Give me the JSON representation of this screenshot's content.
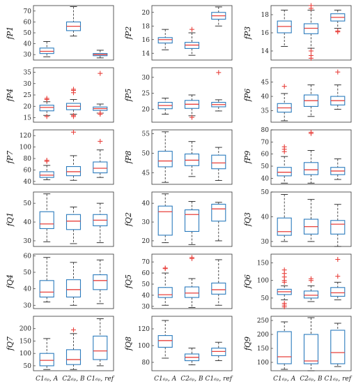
{
  "style": {
    "box_color": "#2b7bbd",
    "median_color": "#e8413c",
    "outlier_color": "#e8413c",
    "whisker_color": "#222222"
  },
  "grid": {
    "rows": 6,
    "cols": 3
  },
  "chart_data": [
    {
      "type": "box",
      "ylabel": "fP1",
      "ylim": [
        25,
        75
      ],
      "ticks": [
        30,
        40,
        50,
        60,
        70
      ],
      "categories": [],
      "boxes": [
        {
          "whislo": 28,
          "q1": 31,
          "med": 33,
          "q3": 36,
          "whishi": 42,
          "fliers": []
        },
        {
          "whislo": 47,
          "q1": 52,
          "med": 56,
          "q3": 60,
          "whishi": 74,
          "fliers": []
        },
        {
          "whislo": 27,
          "q1": 29,
          "med": 30,
          "q3": 31,
          "whishi": 34,
          "fliers": []
        }
      ]
    },
    {
      "type": "box",
      "ylabel": "fP2",
      "ylim": [
        13,
        21
      ],
      "ticks": [
        14,
        16,
        18,
        20
      ],
      "categories": [],
      "boxes": [
        {
          "whislo": 14.5,
          "q1": 15.5,
          "med": 16,
          "q3": 16.3,
          "whishi": 17.5,
          "fliers": []
        },
        {
          "whislo": 13.7,
          "q1": 14.7,
          "med": 15.2,
          "q3": 15.6,
          "whishi": 17,
          "fliers": [
            17.5
          ]
        },
        {
          "whislo": 18,
          "q1": 19,
          "med": 19.5,
          "q3": 20,
          "whishi": 20.8,
          "fliers": []
        }
      ]
    },
    {
      "type": "box",
      "ylabel": "fP3",
      "ylim": [
        13,
        19
      ],
      "ticks": [
        14,
        16,
        18
      ],
      "categories": [],
      "boxes": [
        {
          "whislo": 14.5,
          "q1": 16,
          "med": 16.7,
          "q3": 17.3,
          "whishi": 18.5,
          "fliers": []
        },
        {
          "whislo": 14.3,
          "q1": 15.9,
          "med": 16.5,
          "q3": 17,
          "whishi": 18.5,
          "fliers": [
            19,
            18.7,
            14,
            13.5,
            13.2
          ]
        },
        {
          "whislo": 16.5,
          "q1": 17.3,
          "med": 17.7,
          "q3": 18.1,
          "whishi": 18.5,
          "fliers": [
            16.2,
            16.1
          ]
        }
      ]
    },
    {
      "type": "box",
      "ylabel": "fP4",
      "ylim": [
        13,
        37
      ],
      "ticks": [
        15,
        20,
        25,
        30,
        35
      ],
      "categories": [],
      "boxes": [
        {
          "whislo": 16,
          "q1": 18,
          "med": 19.5,
          "q3": 20.5,
          "whishi": 22,
          "fliers": [
            23.5,
            23,
            15.5
          ]
        },
        {
          "whislo": 16.5,
          "q1": 18.5,
          "med": 20,
          "q3": 21.3,
          "whishi": 23,
          "fliers": [
            27.5,
            27,
            26,
            16,
            15.5
          ]
        },
        {
          "whislo": 17,
          "q1": 18.2,
          "med": 19,
          "q3": 19.7,
          "whishi": 21,
          "fliers": [
            34.5,
            17,
            16.5
          ]
        }
      ]
    },
    {
      "type": "box",
      "ylabel": "fP5",
      "ylim": [
        16,
        33
      ],
      "ticks": [
        20,
        25,
        30
      ],
      "categories": [],
      "boxes": [
        {
          "whislo": 18.5,
          "q1": 20.2,
          "med": 21.2,
          "q3": 22.2,
          "whishi": 23.5,
          "fliers": []
        },
        {
          "whislo": 18,
          "q1": 20.3,
          "med": 21.6,
          "q3": 22.8,
          "whishi": 24.5,
          "fliers": [
            17.5
          ]
        },
        {
          "whislo": 19.5,
          "q1": 20.8,
          "med": 21.5,
          "q3": 22.2,
          "whishi": 23,
          "fliers": [
            31.5
          ]
        }
      ]
    },
    {
      "type": "box",
      "ylabel": "fP6",
      "ylim": [
        31,
        50
      ],
      "ticks": [
        35,
        40,
        45
      ],
      "categories": [],
      "boxes": [
        {
          "whislo": 31.5,
          "q1": 34.5,
          "med": 36,
          "q3": 37.5,
          "whishi": 41,
          "fliers": [
            43.5
          ]
        },
        {
          "whislo": 33,
          "q1": 36.5,
          "med": 38.5,
          "q3": 40.5,
          "whishi": 44,
          "fliers": []
        },
        {
          "whislo": 35.5,
          "q1": 37,
          "med": 38.5,
          "q3": 40,
          "whishi": 44,
          "fliers": [
            48.5
          ]
        }
      ]
    },
    {
      "type": "box",
      "ylabel": "fP7",
      "ylim": [
        35,
        130
      ],
      "ticks": [
        40,
        60,
        80,
        100,
        120
      ],
      "categories": [],
      "boxes": [
        {
          "whislo": 43,
          "q1": 47,
          "med": 51,
          "q3": 57,
          "whishi": 68,
          "fliers": [
            77,
            75
          ]
        },
        {
          "whislo": 42,
          "q1": 50,
          "med": 57,
          "q3": 66,
          "whishi": 85,
          "fliers": [
            126
          ]
        },
        {
          "whislo": 47,
          "q1": 55,
          "med": 63,
          "q3": 74,
          "whishi": 95,
          "fliers": [
            110
          ]
        }
      ]
    },
    {
      "type": "box",
      "ylabel": "fP8",
      "ylim": [
        42,
        56
      ],
      "ticks": [
        45,
        50,
        55
      ],
      "categories": [],
      "boxes": [
        {
          "whislo": 42.5,
          "q1": 46.5,
          "med": 48,
          "q3": 50.5,
          "whishi": 55.5,
          "fliers": []
        },
        {
          "whislo": 44,
          "q1": 46.8,
          "med": 48.2,
          "q3": 49.8,
          "whishi": 53,
          "fliers": []
        },
        {
          "whislo": 43,
          "q1": 46,
          "med": 47.5,
          "q3": 49.5,
          "whishi": 51.5,
          "fliers": []
        }
      ]
    },
    {
      "type": "box",
      "ylabel": "fP9",
      "ylim": [
        35,
        80
      ],
      "ticks": [
        40,
        50,
        60,
        70,
        80
      ],
      "categories": [],
      "boxes": [
        {
          "whislo": 36,
          "q1": 42,
          "med": 45,
          "q3": 49,
          "whishi": 58,
          "fliers": [
            66,
            64,
            62
          ]
        },
        {
          "whislo": 36,
          "q1": 43,
          "med": 47,
          "q3": 53,
          "whishi": 63,
          "fliers": [
            78,
            77
          ]
        },
        {
          "whislo": 39,
          "q1": 43,
          "med": 46,
          "q3": 49,
          "whishi": 56,
          "fliers": []
        }
      ]
    },
    {
      "type": "box",
      "ylabel": "fQ1",
      "ylim": [
        27,
        56
      ],
      "ticks": [
        30,
        40,
        50
      ],
      "categories": [],
      "boxes": [
        {
          "whislo": 29.5,
          "q1": 36.5,
          "med": 39,
          "q3": 45.5,
          "whishi": 55,
          "fliers": []
        },
        {
          "whislo": 28.5,
          "q1": 36,
          "med": 40.5,
          "q3": 44,
          "whishi": 48,
          "fliers": []
        },
        {
          "whislo": 29,
          "q1": 38,
          "med": 41,
          "q3": 44,
          "whishi": 50,
          "fliers": []
        }
      ]
    },
    {
      "type": "box",
      "ylabel": "fQ2",
      "ylim": [
        17,
        46
      ],
      "ticks": [
        20,
        30,
        40
      ],
      "categories": [],
      "boxes": [
        {
          "whislo": 19,
          "q1": 23,
          "med": 35.5,
          "q3": 38.5,
          "whishi": 45,
          "fliers": []
        },
        {
          "whislo": 18,
          "q1": 25,
          "med": 34,
          "q3": 36.5,
          "whishi": 41,
          "fliers": []
        },
        {
          "whislo": 20,
          "q1": 30.5,
          "med": 37,
          "q3": 39.5,
          "whishi": 40.5,
          "fliers": []
        }
      ]
    },
    {
      "type": "box",
      "ylabel": "fQ3",
      "ylim": [
        28,
        50
      ],
      "ticks": [
        30,
        40,
        50
      ],
      "categories": [],
      "boxes": [
        {
          "whislo": 30,
          "q1": 32.5,
          "med": 34,
          "q3": 39.5,
          "whishi": 49,
          "fliers": []
        },
        {
          "whislo": 30,
          "q1": 33,
          "med": 36,
          "q3": 39,
          "whishi": 47,
          "fliers": []
        },
        {
          "whislo": 28,
          "q1": 33,
          "med": 37,
          "q3": 38.5,
          "whishi": 45,
          "fliers": []
        }
      ]
    },
    {
      "type": "box",
      "ylabel": "fQ4",
      "ylim": [
        28,
        61
      ],
      "ticks": [
        30,
        40,
        50,
        60
      ],
      "categories": [],
      "boxes": [
        {
          "whislo": 32,
          "q1": 35,
          "med": 38,
          "q3": 45,
          "whishi": 59,
          "fliers": []
        },
        {
          "whislo": 30,
          "q1": 35,
          "med": 39.5,
          "q3": 45.5,
          "whishi": 56,
          "fliers": []
        },
        {
          "whislo": 31,
          "q1": 39.5,
          "med": 45,
          "q3": 48.5,
          "whishi": 57.5,
          "fliers": []
        }
      ]
    },
    {
      "type": "box",
      "ylabel": "fQ5",
      "ylim": [
        28,
        77
      ],
      "ticks": [
        30,
        40,
        50,
        60,
        70
      ],
      "categories": [],
      "boxes": [
        {
          "whislo": 31,
          "q1": 38,
          "med": 40.5,
          "q3": 47,
          "whishi": 60,
          "fliers": [
            64.5,
            64
          ]
        },
        {
          "whislo": 29,
          "q1": 38,
          "med": 42,
          "q3": 47.5,
          "whishi": 55,
          "fliers": [
            74,
            73
          ]
        },
        {
          "whislo": 31,
          "q1": 41,
          "med": 45,
          "q3": 51,
          "whishi": 72,
          "fliers": []
        }
      ]
    },
    {
      "type": "box",
      "ylabel": "fQ6",
      "ylim": [
        20,
        175
      ],
      "ticks": [
        50,
        100,
        150
      ],
      "categories": [],
      "boxes": [
        {
          "whislo": 45,
          "q1": 60,
          "med": 68,
          "q3": 75,
          "whishi": 85,
          "fliers": [
            130,
            120,
            110,
            100,
            95,
            35,
            30,
            25
          ]
        },
        {
          "whislo": 40,
          "q1": 50,
          "med": 58,
          "q3": 70,
          "whishi": 85,
          "fliers": [
            105,
            100
          ]
        },
        {
          "whislo": 45,
          "q1": 55,
          "med": 65,
          "q3": 80,
          "whishi": 95,
          "fliers": [
            160,
            112
          ]
        }
      ]
    },
    {
      "type": "box",
      "ylabel": "fQ7",
      "ylim": [
        30,
        250
      ],
      "ticks": [
        50,
        100,
        150,
        200
      ],
      "categories": [
        "C1₆ₚ, A",
        "C2₆ₚ, B",
        "C1₆ₚ, ref"
      ],
      "boxes": [
        {
          "whislo": 35,
          "q1": 50,
          "med": 72,
          "q3": 100,
          "whishi": 160,
          "fliers": []
        },
        {
          "whislo": 35,
          "q1": 55,
          "med": 75,
          "q3": 115,
          "whishi": 180,
          "fliers": [
            195
          ]
        },
        {
          "whislo": 50,
          "q1": 75,
          "med": 110,
          "q3": 170,
          "whishi": 240,
          "fliers": []
        }
      ]
    },
    {
      "type": "box",
      "ylabel": "fQ8",
      "ylim": [
        70,
        135
      ],
      "ticks": [
        80,
        100,
        120
      ],
      "categories": [
        "C1₆ₚ, A",
        "C2₆ₚ, B",
        "C1₆ₚ, ref"
      ],
      "boxes": [
        {
          "whislo": 85,
          "q1": 98,
          "med": 106,
          "q3": 112,
          "whishi": 130,
          "fliers": []
        },
        {
          "whislo": 77,
          "q1": 82,
          "med": 86,
          "q3": 90,
          "whishi": 97,
          "fliers": []
        },
        {
          "whislo": 82,
          "q1": 88,
          "med": 93,
          "q3": 97,
          "whishi": 104,
          "fliers": []
        }
      ]
    },
    {
      "type": "box",
      "ylabel": "fQ9",
      "ylim": [
        70,
        265
      ],
      "ticks": [
        100,
        150,
        200,
        250
      ],
      "categories": [
        "C1₆ₚ, A",
        "C2₆ₚ, B",
        "C1₆ₚ, ref"
      ],
      "boxes": [
        {
          "whislo": 75,
          "q1": 95,
          "med": 120,
          "q3": 210,
          "whishi": 245,
          "fliers": []
        },
        {
          "whislo": 70,
          "q1": 95,
          "med": 105,
          "q3": 200,
          "whishi": 260,
          "fliers": []
        },
        {
          "whislo": 85,
          "q1": 95,
          "med": 135,
          "q3": 215,
          "whishi": 240,
          "fliers": []
        }
      ]
    }
  ]
}
